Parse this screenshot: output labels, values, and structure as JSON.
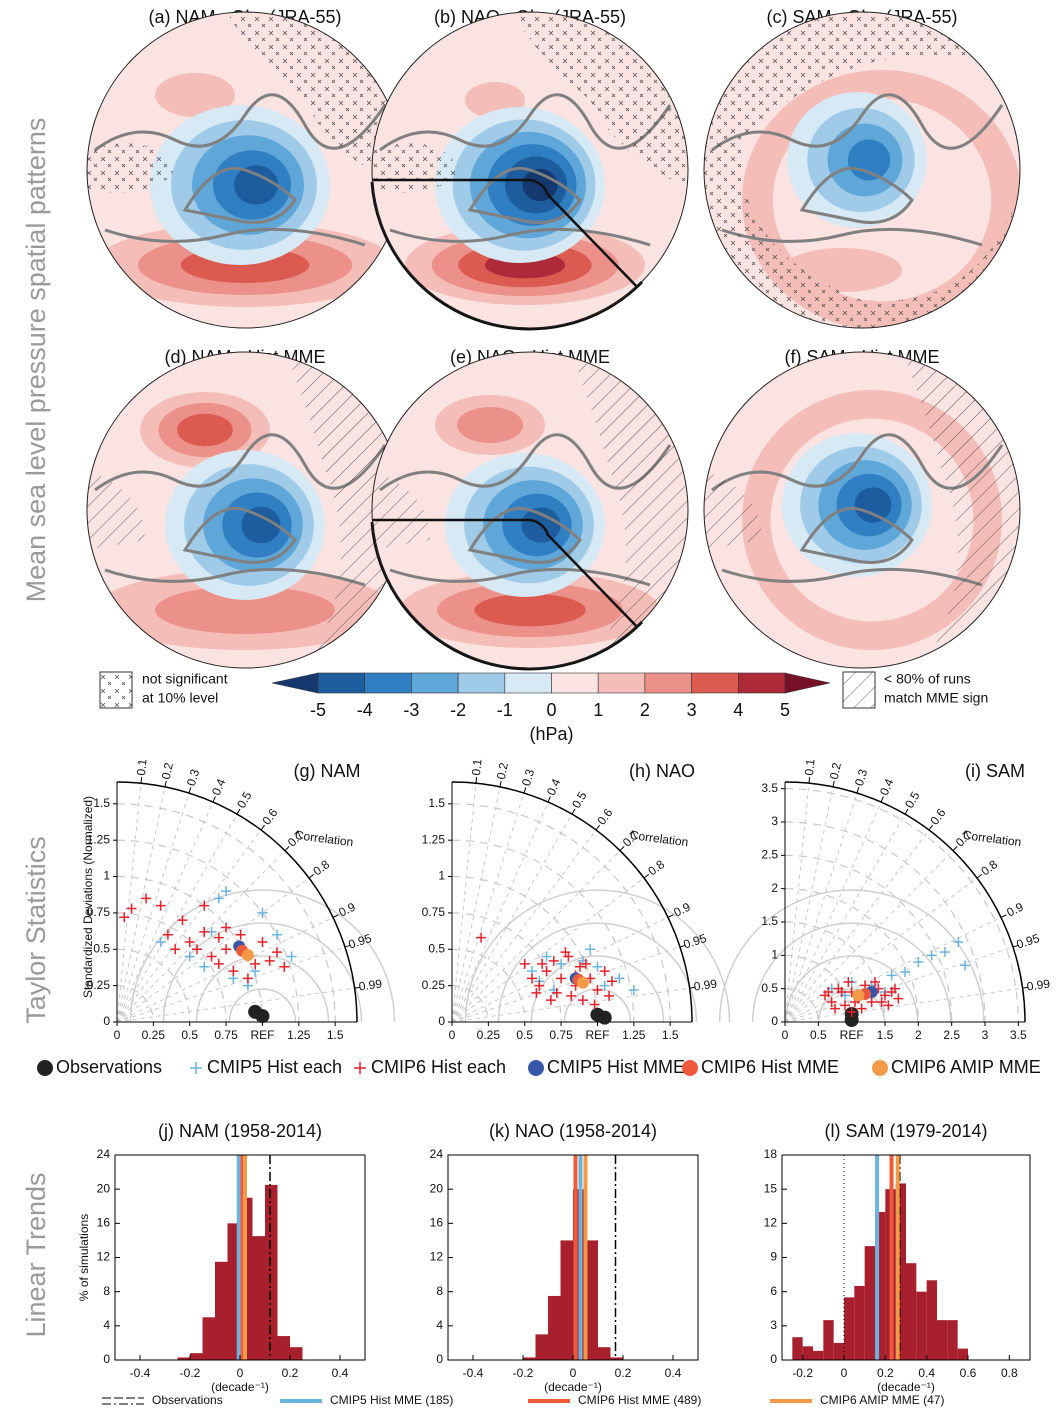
{
  "row_labels": [
    "Mean sea level pressure spatial patterns",
    "Taylor Statistics",
    "Linear Trends"
  ],
  "maps": [
    {
      "title": "(a) NAM - Obs (JRA-55)"
    },
    {
      "title": "(b) NAO - Obs (JRA-55)"
    },
    {
      "title": "(c) SAM - Obs (JRA-55)"
    },
    {
      "title": "(d) NAM - Hist MME"
    },
    {
      "title": "(e) NAO - Hist MME"
    },
    {
      "title": "(f) SAM - Hist MME"
    }
  ],
  "stipple_legend": [
    "not significant",
    "at 10% level"
  ],
  "hatch_legend": [
    "< 80% of runs",
    "match MME sign"
  ],
  "colorbar": {
    "ticks": [
      -5,
      -4,
      -3,
      -2,
      -1,
      0,
      1,
      2,
      3,
      4,
      5
    ],
    "label": "(hPa)",
    "colors": [
      "#15386e",
      "#1d5d9e",
      "#2f7fc2",
      "#5fa6d9",
      "#9fcbe8",
      "#d6e9f4",
      "#fbe3e1",
      "#f4bdb8",
      "#eb918a",
      "#dc5b51",
      "#ae2a38",
      "#751026"
    ]
  },
  "chart_data": [
    {
      "type": "taylor",
      "title": "(g) NAM",
      "ylabel": "Standardized Deviations (Normalized)",
      "xlim": [
        0,
        1.65
      ],
      "xticks": [
        0,
        0.25,
        0.5,
        0.75,
        {
          "value": 1,
          "label": "REF"
        },
        1.25,
        1.5
      ],
      "yticks": [
        0,
        0.25,
        0.5,
        0.75,
        1,
        1.25,
        1.5
      ],
      "correlation_label": "Correlation",
      "correlation_ticks": [
        0.1,
        0.2,
        0.3,
        0.4,
        0.5,
        0.6,
        0.7,
        0.8,
        0.9,
        0.95,
        0.99
      ],
      "series": [
        {
          "name": "Observations",
          "color": "#222222",
          "marker": "dot",
          "x": [
            0.95,
            1.0
          ],
          "values": [
            0.07,
            0.04
          ]
        },
        {
          "name": "CMIP5 Hist each",
          "color": "#6cb4e0",
          "marker": "plus",
          "x": [
            0.3,
            0.5,
            0.6,
            0.7,
            0.8,
            0.9,
            1.0,
            1.1,
            1.2,
            0.75,
            0.95,
            0.65
          ],
          "values": [
            0.55,
            0.45,
            0.38,
            0.85,
            0.3,
            0.25,
            0.75,
            0.6,
            0.45,
            0.9,
            0.35,
            0.62
          ]
        },
        {
          "name": "CMIP6 Hist each",
          "color": "#e8202a",
          "marker": "plus",
          "x": [
            0.05,
            0.1,
            0.2,
            0.3,
            0.35,
            0.45,
            0.5,
            0.55,
            0.6,
            0.65,
            0.7,
            0.7,
            0.75,
            0.8,
            0.85,
            0.9,
            0.95,
            1.0,
            1.05,
            1.1,
            1.15,
            0.6,
            0.75,
            0.9,
            0.4
          ],
          "values": [
            0.72,
            0.78,
            0.85,
            0.8,
            0.6,
            0.7,
            0.55,
            0.5,
            0.62,
            0.45,
            0.58,
            0.4,
            0.5,
            0.35,
            0.6,
            0.45,
            0.4,
            0.55,
            0.42,
            0.48,
            0.38,
            0.8,
            0.65,
            0.3,
            0.5
          ]
        },
        {
          "name": "CMIP5 Hist MME",
          "color": "#3a56a8",
          "marker": "dot",
          "x": [
            0.84
          ],
          "values": [
            0.52
          ]
        },
        {
          "name": "CMIP6 Hist MME",
          "color": "#ef5a3c",
          "marker": "dot",
          "x": [
            0.86
          ],
          "values": [
            0.49
          ]
        },
        {
          "name": "CMIP6 AMIP MME",
          "color": "#f39a48",
          "marker": "dot",
          "x": [
            0.9
          ],
          "values": [
            0.46
          ]
        }
      ]
    },
    {
      "type": "taylor",
      "title": "(h) NAO",
      "xlim": [
        0,
        1.65
      ],
      "xticks": [
        0,
        0.25,
        0.5,
        0.75,
        {
          "value": 1,
          "label": "REF"
        },
        1.25,
        1.5
      ],
      "yticks": [
        0,
        0.25,
        0.5,
        0.75,
        1,
        1.25,
        1.5
      ],
      "correlation_label": "Correlation",
      "correlation_ticks": [
        0.1,
        0.2,
        0.3,
        0.4,
        0.5,
        0.6,
        0.7,
        0.8,
        0.9,
        0.95,
        0.99
      ],
      "series": [
        {
          "color": "#222222",
          "marker": "dot",
          "x": [
            1.0,
            1.05
          ],
          "values": [
            0.05,
            0.03
          ]
        },
        {
          "color": "#6cb4e0",
          "marker": "plus",
          "x": [
            0.55,
            0.65,
            0.75,
            0.85,
            0.95,
            1.05,
            1.15,
            1.25,
            0.7,
            0.9,
            1.0,
            0.6
          ],
          "values": [
            0.35,
            0.45,
            0.4,
            0.3,
            0.5,
            0.25,
            0.3,
            0.22,
            0.22,
            0.42,
            0.38,
            0.28
          ]
        },
        {
          "color": "#e8202a",
          "marker": "plus",
          "x": [
            0.2,
            0.5,
            0.55,
            0.6,
            0.65,
            0.7,
            0.72,
            0.75,
            0.8,
            0.82,
            0.85,
            0.88,
            0.9,
            0.95,
            1.0,
            1.05,
            1.1,
            0.62,
            0.68,
            0.78,
            0.92,
            0.98,
            1.08,
            0.58,
            0.85
          ],
          "values": [
            0.58,
            0.4,
            0.3,
            0.25,
            0.35,
            0.42,
            0.2,
            0.3,
            0.45,
            0.18,
            0.25,
            0.38,
            0.15,
            0.3,
            0.22,
            0.35,
            0.28,
            0.4,
            0.15,
            0.48,
            0.4,
            0.12,
            0.18,
            0.2,
            0.32
          ]
        },
        {
          "color": "#3a56a8",
          "marker": "dot",
          "x": [
            0.85
          ],
          "values": [
            0.3
          ]
        },
        {
          "color": "#ef5a3c",
          "marker": "dot",
          "x": [
            0.87
          ],
          "values": [
            0.29
          ]
        },
        {
          "color": "#f39a48",
          "marker": "dot",
          "x": [
            0.9
          ],
          "values": [
            0.27
          ]
        }
      ]
    },
    {
      "type": "taylor",
      "title": "(i) SAM",
      "xlim": [
        0,
        3.6
      ],
      "xticks": [
        0,
        0.5,
        {
          "value": 1,
          "label": "REF"
        },
        1.5,
        2,
        2.5,
        3,
        3.5
      ],
      "yticks": [
        0,
        0.5,
        1,
        1.5,
        2,
        2.5,
        3,
        3.5
      ],
      "correlation_label": "Correlation",
      "correlation_ticks": [
        0.1,
        0.2,
        0.3,
        0.4,
        0.5,
        0.6,
        0.7,
        0.8,
        0.9,
        0.95,
        0.99
      ],
      "series": [
        {
          "color": "#222222",
          "marker": "dot",
          "x": [
            1.0,
            1.0
          ],
          "values": [
            0.12,
            0.03
          ]
        },
        {
          "color": "#6cb4e0",
          "marker": "plus",
          "x": [
            0.7,
            1.0,
            1.3,
            1.6,
            1.8,
            2.0,
            2.2,
            2.4,
            2.6,
            2.7,
            1.5,
            0.9
          ],
          "values": [
            0.5,
            0.6,
            0.55,
            0.7,
            0.75,
            0.9,
            1.0,
            1.05,
            1.2,
            0.85,
            0.45,
            0.4
          ]
        },
        {
          "color": "#e8202a",
          "marker": "plus",
          "x": [
            0.6,
            0.7,
            0.8,
            0.9,
            1.0,
            1.1,
            1.2,
            1.3,
            1.4,
            1.5,
            1.6,
            1.7,
            0.75,
            0.95,
            1.15,
            1.35,
            1.55,
            0.85,
            1.05,
            1.25,
            1.45,
            1.65,
            0.65,
            1.0,
            1.3
          ],
          "values": [
            0.4,
            0.3,
            0.5,
            0.25,
            0.45,
            0.35,
            0.55,
            0.3,
            0.5,
            0.4,
            0.45,
            0.35,
            0.2,
            0.6,
            0.2,
            0.6,
            0.25,
            0.45,
            0.3,
            0.45,
            0.3,
            0.5,
            0.45,
            0.15,
            0.4
          ]
        },
        {
          "color": "#3a56a8",
          "marker": "dot",
          "x": [
            1.3
          ],
          "values": [
            0.45
          ]
        },
        {
          "color": "#ef5a3c",
          "marker": "dot",
          "x": [
            1.2
          ],
          "values": [
            0.42
          ]
        },
        {
          "color": "#f39a48",
          "marker": "dot",
          "x": [
            1.1
          ],
          "values": [
            0.4
          ]
        }
      ]
    },
    {
      "type": "histogram",
      "title": "(j) NAM (1958-2014)",
      "ylabel": "% of simulations",
      "xlabel": "(decade⁻¹)",
      "color": "#a8202e",
      "bins": [
        -0.25,
        -0.2,
        -0.15,
        -0.1,
        -0.05,
        0,
        0.05,
        0.1,
        0.15,
        0.2,
        0.25
      ],
      "values": [
        0.3,
        0.8,
        5,
        11.5,
        16,
        19,
        14.5,
        20.5,
        2.8,
        1.5
      ],
      "xlim": [
        -0.5,
        0.5
      ],
      "xticks": [
        -0.4,
        -0.2,
        0,
        0.2,
        0.4
      ],
      "ylim": [
        0,
        24
      ],
      "yticks": [
        0,
        4,
        8,
        12,
        16,
        20,
        24
      ],
      "lines": [
        {
          "name": "Observations",
          "color": "#000000",
          "linestyle": "dashed",
          "value": 0.12
        },
        {
          "name": "CMIP5 Hist MME (185)",
          "color": "#6cb4e0",
          "linestyle": "solid",
          "value": -0.005
        },
        {
          "name": "CMIP6 Hist MME (489)",
          "color": "#ef5a3c",
          "linestyle": "solid",
          "value": 0.01
        },
        {
          "name": "CMIP6 AMIP MME (47)",
          "color": "#f39a48",
          "linestyle": "solid",
          "value": 0.02
        }
      ]
    },
    {
      "type": "histogram",
      "title": "(k) NAO (1958-2014)",
      "xlabel": "(decade⁻¹)",
      "color": "#a8202e",
      "bins": [
        -0.2,
        -0.15,
        -0.1,
        -0.05,
        0,
        0.05,
        0.1,
        0.15,
        0.2
      ],
      "values": [
        0.3,
        3,
        7.5,
        14,
        20,
        14,
        1.5,
        0.3
      ],
      "xlim": [
        -0.5,
        0.5
      ],
      "xticks": [
        -0.4,
        -0.2,
        0,
        0.2,
        0.4
      ],
      "ylim": [
        0,
        24
      ],
      "yticks": [
        0,
        4,
        8,
        12,
        16,
        20,
        24
      ],
      "lines": [
        {
          "color": "#000000",
          "linestyle": "dashed",
          "value": 0.17
        },
        {
          "color": "#6cb4e0",
          "linestyle": "solid",
          "value": 0.03
        },
        {
          "color": "#ef5a3c",
          "linestyle": "solid",
          "value": 0.01
        },
        {
          "color": "#f39a48",
          "linestyle": "solid",
          "value": 0.05
        }
      ]
    },
    {
      "type": "histogram",
      "title": "(l) SAM (1979-2014)",
      "xlabel": "(decade⁻¹)",
      "color": "#a8202e",
      "zero_line": true,
      "bins": [
        -0.25,
        -0.2,
        -0.15,
        -0.1,
        -0.05,
        0,
        0.05,
        0.1,
        0.15,
        0.2,
        0.25,
        0.3,
        0.35,
        0.4,
        0.45,
        0.5,
        0.55,
        0.6
      ],
      "values": [
        2,
        1.2,
        0.8,
        3.5,
        1.5,
        5.5,
        6.5,
        10,
        13,
        15,
        15.5,
        8.5,
        6,
        7,
        3.5,
        3.5,
        1
      ],
      "xlim": [
        -0.3,
        0.9
      ],
      "xticks": [
        -0.2,
        0,
        0.2,
        0.4,
        0.6,
        0.8
      ],
      "ylim": [
        0,
        18
      ],
      "yticks": [
        0,
        3,
        6,
        9,
        12,
        15,
        18
      ],
      "lines": [
        {
          "color": "#000000",
          "linestyle": "dashed",
          "value": 0.27
        },
        {
          "color": "#6cb4e0",
          "linestyle": "solid",
          "value": 0.16
        },
        {
          "color": "#ef5a3c",
          "linestyle": "solid",
          "value": 0.23
        },
        {
          "color": "#f39a48",
          "linestyle": "solid",
          "value": 0.26
        }
      ]
    }
  ]
}
